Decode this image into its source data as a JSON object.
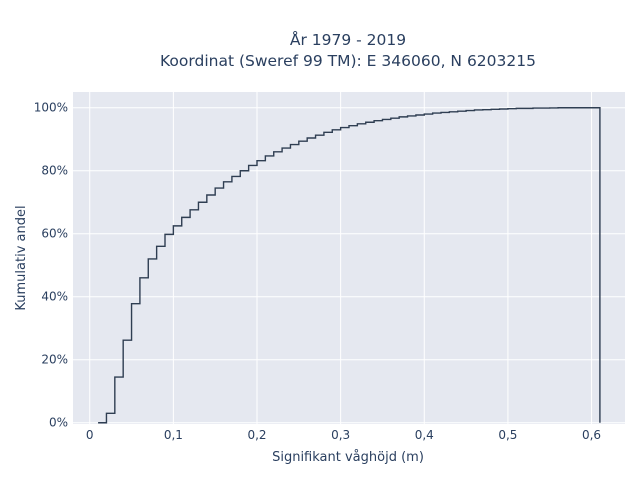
{
  "chart_data": {
    "type": "line",
    "subtype": "cumulative step histogram",
    "title_lines": [
      "År 1979 - 2019",
      "Koordinat (Sweref 99 TM): E 346060, N 6203215"
    ],
    "xlabel": "Signifikant våghöjd (m)",
    "ylabel": "Kumulativ andel",
    "xlim": [
      -0.02,
      0.64
    ],
    "ylim": [
      -0.004,
      1.05
    ],
    "grid": true,
    "legend": false,
    "x_ticks": [
      {
        "value": 0,
        "label": "0"
      },
      {
        "value": 0.1,
        "label": "0,1"
      },
      {
        "value": 0.2,
        "label": "0,2"
      },
      {
        "value": 0.3,
        "label": "0,3"
      },
      {
        "value": 0.4,
        "label": "0,4"
      },
      {
        "value": 0.5,
        "label": "0,5"
      },
      {
        "value": 0.6,
        "label": "0,6"
      }
    ],
    "y_ticks": [
      {
        "value": 0,
        "label": "0%"
      },
      {
        "value": 0.2,
        "label": "20%"
      },
      {
        "value": 0.4,
        "label": "40%"
      },
      {
        "value": 0.6,
        "label": "60%"
      },
      {
        "value": 0.8,
        "label": "80%"
      },
      {
        "value": 1.0,
        "label": "100%"
      }
    ],
    "colors": {
      "background": "#e5e8f0",
      "grid": "#ffffff",
      "line": "#2f3e52",
      "text": "#2a3f5f"
    },
    "series": [
      {
        "bin_width": 0.01,
        "x_start": 0.01,
        "x_end": 0.61,
        "cumulative": [
          0.0,
          0.03,
          0.145,
          0.262,
          0.378,
          0.46,
          0.52,
          0.56,
          0.598,
          0.625,
          0.652,
          0.676,
          0.7,
          0.723,
          0.745,
          0.765,
          0.782,
          0.8,
          0.817,
          0.832,
          0.847,
          0.86,
          0.872,
          0.883,
          0.894,
          0.904,
          0.913,
          0.922,
          0.93,
          0.937,
          0.943,
          0.949,
          0.954,
          0.959,
          0.963,
          0.967,
          0.971,
          0.974,
          0.977,
          0.98,
          0.983,
          0.985,
          0.987,
          0.989,
          0.991,
          0.993,
          0.994,
          0.995,
          0.996,
          0.997,
          0.998,
          0.998,
          0.999,
          0.999,
          0.9995,
          1.0,
          1.0,
          1.0,
          1.0,
          1.0
        ]
      }
    ]
  }
}
